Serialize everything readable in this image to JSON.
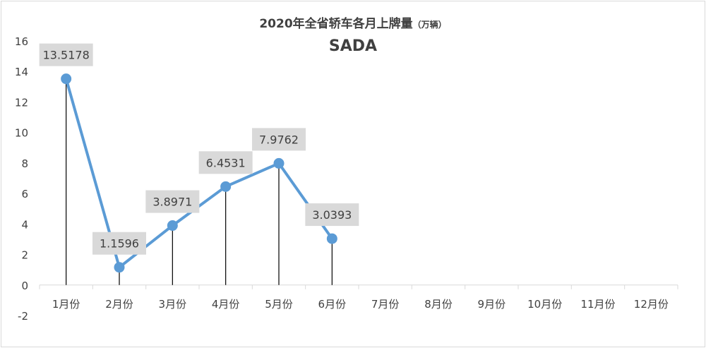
{
  "chart_data": {
    "type": "line",
    "title": "2020年全省轿车各月上牌量",
    "title_unit": "（万辆）",
    "subtitle": "SADA",
    "categories": [
      "1月份",
      "2月份",
      "3月份",
      "4月份",
      "5月份",
      "6月份",
      "7月份",
      "8月份",
      "9月份",
      "10月份",
      "11月份",
      "12月份"
    ],
    "series": [
      {
        "values": [
          13.5178,
          1.1596,
          3.8971,
          6.4531,
          7.9762,
          3.0393,
          null,
          null,
          null,
          null,
          null,
          null
        ]
      }
    ],
    "data_labels": [
      "13.5178",
      "1.1596",
      "3.8971",
      "6.4531",
      "7.9762",
      "3.0393"
    ],
    "ylim": [
      -2,
      16
    ],
    "yticks": [
      "-2",
      "0",
      "2",
      "4",
      "6",
      "8",
      "10",
      "12",
      "14",
      "16"
    ],
    "drop_lines": true,
    "grid": false,
    "legend": "none",
    "colors": {
      "line": "#5b9bd5",
      "marker": "#5b9bd5",
      "drop_line": "#000000",
      "label_box": "#d9d9d9",
      "axis": "#d9d9d9",
      "text": "#404040"
    }
  }
}
